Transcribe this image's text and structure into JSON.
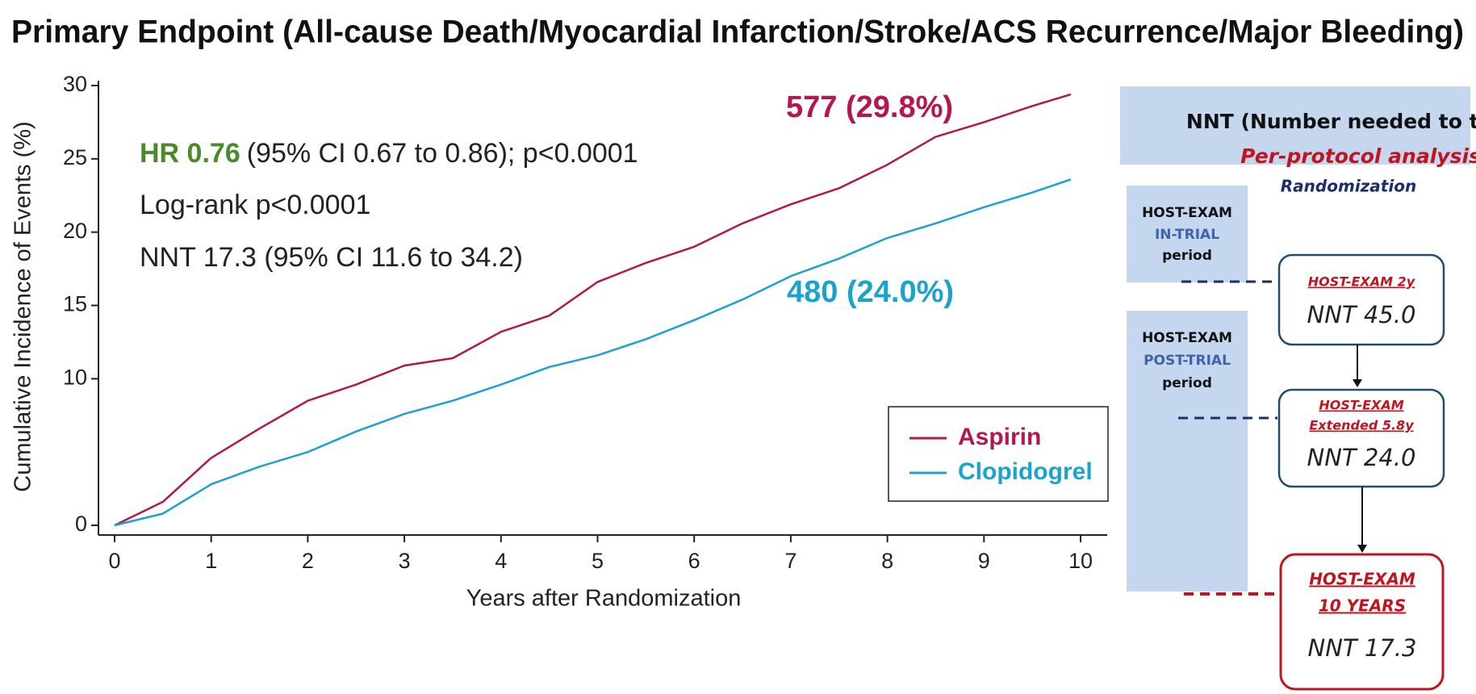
{
  "chart_data": {
    "type": "line",
    "title": "Primary Endpoint (All-cause Death/Myocardial Infarction/Stroke/ACS Recurrence/Major Bleeding)",
    "x_label": "Years after Randomization",
    "y_label": "Cumulative Incidence of Events (%)",
    "x": [
      0,
      0.5,
      1,
      1.5,
      2,
      2.5,
      3,
      3.5,
      4,
      4.5,
      5,
      5.5,
      6,
      6.5,
      7,
      7.5,
      8,
      8.5,
      9,
      9.5,
      9.9
    ],
    "series": [
      {
        "name": "Aspirin",
        "color": "#b5164b",
        "end_label": "577 (29.8%)",
        "values": [
          0,
          1.6,
          4.6,
          6.6,
          8.5,
          9.6,
          10.9,
          11.4,
          13.2,
          14.3,
          16.6,
          17.9,
          19.0,
          20.6,
          21.9,
          23.0,
          24.6,
          26.5,
          27.5,
          28.6,
          29.4
        ]
      },
      {
        "name": "Clopidogrel",
        "color": "#1aa3cc",
        "end_label": "480 (24.0%)",
        "values": [
          0,
          0.8,
          2.8,
          4.0,
          5.0,
          6.4,
          7.6,
          8.5,
          9.6,
          10.8,
          11.6,
          12.7,
          14.0,
          15.4,
          17.0,
          18.2,
          19.6,
          20.6,
          21.7,
          22.7,
          23.6
        ]
      }
    ],
    "xlim": [
      0,
      10
    ],
    "xticks": [
      0,
      1,
      2,
      3,
      4,
      5,
      6,
      7,
      8,
      9,
      10
    ],
    "ylim": [
      0,
      30
    ],
    "yticks": [
      0,
      10,
      15,
      20,
      25,
      30
    ],
    "grid": false,
    "legend": "lower right",
    "annotations": {
      "hr_label": "HR 0.76",
      "hr_ci": "(95% CI 0.67 to 0.86); p<0.0001",
      "logrank": "Log-rank p<0.0001",
      "nnt": "NNT 17.3 (95% CI 11.6 to 34.2)"
    }
  },
  "nnt_panel": {
    "title": "NNT (Number needed to treat)",
    "subtitle": "Per-protocol analysis",
    "randomization": "Randomization",
    "periods": [
      {
        "lines": [
          "HOST-EXAM",
          "IN-TRIAL",
          "period"
        ]
      },
      {
        "lines": [
          "HOST-EXAM",
          "POST-TRIAL",
          "period"
        ]
      }
    ],
    "boxes": [
      {
        "lines": [
          "HOST-EXAM 2y"
        ],
        "nnt": "NNT 45.0"
      },
      {
        "lines": [
          "HOST-EXAM",
          "Extended 5.8y"
        ],
        "nnt": "NNT 24.0"
      },
      {
        "lines": [
          "HOST-EXAM",
          "10 YEARS"
        ],
        "nnt": "NNT 17.3"
      }
    ]
  }
}
